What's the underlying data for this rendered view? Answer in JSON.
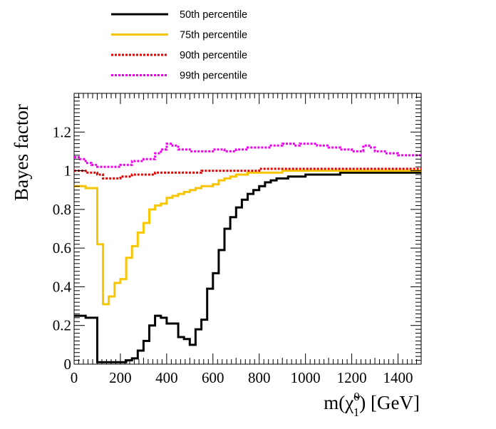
{
  "chart_data": {
    "type": "line",
    "ylabel": "Bayes factor",
    "xlabel": {
      "prefix": "m(",
      "symbol": "χ̃",
      "superscript": "0",
      "subscript": "1",
      "suffix": ") [GeV]"
    },
    "xlim": [
      0,
      1500
    ],
    "ylim": [
      0,
      1.4
    ],
    "x_ticks": [
      0,
      200,
      400,
      600,
      800,
      1000,
      1200,
      1400
    ],
    "y_ticks": [
      0,
      0.2,
      0.4,
      0.6,
      0.8,
      1,
      1.2
    ],
    "bin_width": 25,
    "legend_position": "top, above plot",
    "series": [
      {
        "name": "50th percentile",
        "color": "#000000",
        "style": "solid",
        "x": [
          0,
          50,
          100,
          150,
          200,
          225,
          250,
          275,
          300,
          325,
          350,
          375,
          400,
          425,
          450,
          475,
          500,
          525,
          550,
          575,
          600,
          625,
          650,
          675,
          700,
          725,
          750,
          775,
          800,
          825,
          850,
          875,
          900,
          925,
          950,
          975,
          1000,
          1050,
          1100,
          1150,
          1200,
          1250,
          1300,
          1350,
          1400,
          1450
        ],
        "y": [
          0.25,
          0.24,
          0.01,
          0.01,
          0.01,
          0.02,
          0.03,
          0.07,
          0.12,
          0.2,
          0.25,
          0.24,
          0.21,
          0.21,
          0.14,
          0.13,
          0.1,
          0.18,
          0.23,
          0.39,
          0.47,
          0.59,
          0.7,
          0.76,
          0.81,
          0.85,
          0.88,
          0.9,
          0.92,
          0.94,
          0.95,
          0.96,
          0.96,
          0.97,
          0.97,
          0.97,
          0.98,
          0.98,
          0.98,
          0.99,
          0.99,
          0.99,
          0.99,
          0.99,
          0.99,
          0.99
        ]
      },
      {
        "name": "75th percentile",
        "color": "#f7c600",
        "style": "solid",
        "x": [
          0,
          50,
          100,
          125,
          150,
          175,
          200,
          225,
          250,
          275,
          300,
          325,
          350,
          375,
          400,
          425,
          450,
          475,
          500,
          525,
          550,
          575,
          600,
          625,
          650,
          675,
          700,
          725,
          750,
          800,
          850,
          900,
          950,
          1000,
          1100,
          1200,
          1300,
          1400,
          1450
        ],
        "y": [
          0.92,
          0.91,
          0.62,
          0.31,
          0.35,
          0.42,
          0.44,
          0.55,
          0.61,
          0.68,
          0.73,
          0.8,
          0.82,
          0.83,
          0.86,
          0.87,
          0.88,
          0.89,
          0.9,
          0.91,
          0.92,
          0.92,
          0.93,
          0.95,
          0.96,
          0.97,
          0.98,
          0.98,
          0.99,
          0.99,
          0.99,
          1.0,
          1.0,
          1.0,
          1.0,
          1.0,
          1.0,
          1.0,
          1.0
        ]
      },
      {
        "name": "90th percentile",
        "color": "#e00000",
        "style": "dotted",
        "x": [
          0,
          25,
          50,
          75,
          100,
          125,
          150,
          200,
          250,
          300,
          350,
          400,
          450,
          500,
          550,
          600,
          650,
          700,
          750,
          800,
          850,
          900,
          950,
          1000,
          1050,
          1100,
          1150,
          1200,
          1250,
          1300,
          1350,
          1400,
          1450
        ],
        "y": [
          1.0,
          1.0,
          0.99,
          0.99,
          0.98,
          0.96,
          0.96,
          0.97,
          0.98,
          0.98,
          0.99,
          0.99,
          0.99,
          0.99,
          1.0,
          1.0,
          1.0,
          1.0,
          1.0,
          1.01,
          1.01,
          1.01,
          1.01,
          1.01,
          1.01,
          1.01,
          1.01,
          1.01,
          1.01,
          1.01,
          1.01,
          1.01,
          1.01
        ]
      },
      {
        "name": "99th percentile",
        "color": "#ee00ee",
        "style": "dotted",
        "x": [
          0,
          25,
          50,
          75,
          100,
          125,
          150,
          200,
          250,
          300,
          350,
          375,
          400,
          425,
          450,
          475,
          500,
          550,
          600,
          650,
          700,
          750,
          800,
          850,
          900,
          950,
          975,
          1000,
          1050,
          1100,
          1150,
          1200,
          1250,
          1275,
          1300,
          1350,
          1400,
          1450
        ],
        "y": [
          1.07,
          1.06,
          1.04,
          1.03,
          1.02,
          1.02,
          1.02,
          1.03,
          1.05,
          1.06,
          1.09,
          1.11,
          1.14,
          1.13,
          1.11,
          1.11,
          1.1,
          1.1,
          1.11,
          1.1,
          1.11,
          1.12,
          1.12,
          1.13,
          1.14,
          1.13,
          1.14,
          1.14,
          1.13,
          1.12,
          1.11,
          1.1,
          1.13,
          1.12,
          1.1,
          1.09,
          1.08,
          1.08
        ]
      }
    ]
  }
}
